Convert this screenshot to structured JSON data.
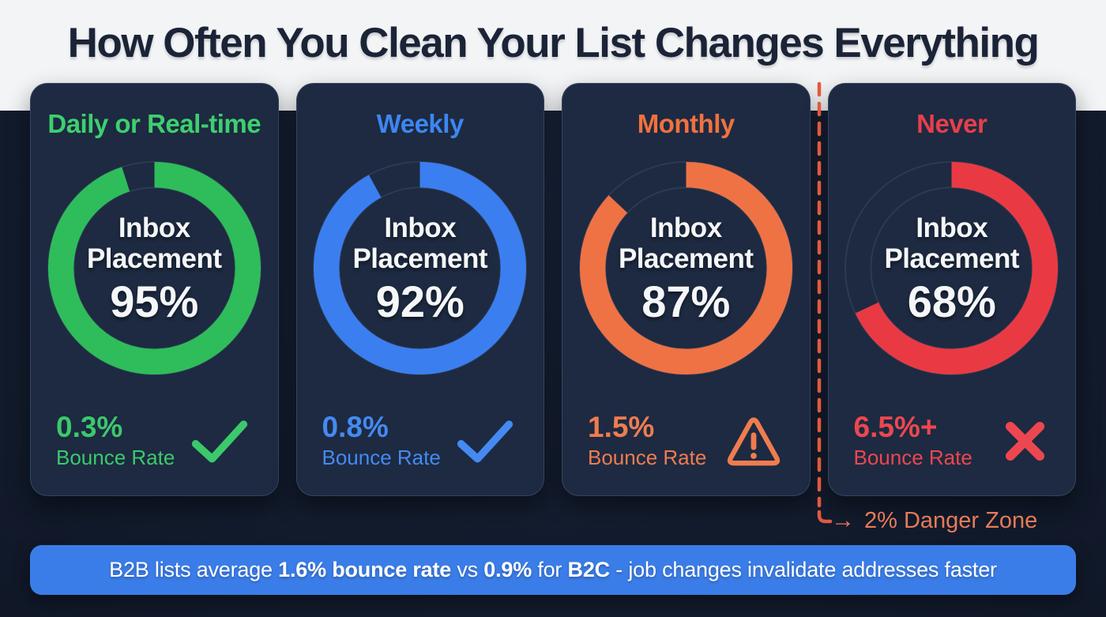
{
  "header": {
    "title": "How Often You Clean Your List Changes Everything"
  },
  "cards": [
    {
      "label": "Daily or Real-time",
      "inbox_line1": "Inbox",
      "inbox_line2": "Placement",
      "inbox_value": "95%",
      "inbox_pct": 95,
      "bounce_value": "0.3%",
      "bounce_label": "Bounce Rate",
      "status": "check",
      "label_color": "#3ecf6e",
      "ring_color": "#2ebd5a",
      "accent_color": "#3bc96c"
    },
    {
      "label": "Weekly",
      "inbox_line1": "Inbox",
      "inbox_line2": "Placement",
      "inbox_value": "92%",
      "inbox_pct": 92,
      "bounce_value": "0.8%",
      "bounce_label": "Bounce Rate",
      "status": "check",
      "label_color": "#3d86f2",
      "ring_color": "#3b7ef0",
      "accent_color": "#448af2"
    },
    {
      "label": "Monthly",
      "inbox_line1": "Inbox",
      "inbox_line2": "Placement",
      "inbox_value": "87%",
      "inbox_pct": 87,
      "bounce_value": "1.5%",
      "bounce_label": "Bounce Rate",
      "status": "warning",
      "label_color": "#f0713f",
      "ring_color": "#ef7245",
      "accent_color": "#f07c4f"
    },
    {
      "label": "Never",
      "inbox_line1": "Inbox",
      "inbox_line2": "Placement",
      "inbox_value": "68%",
      "inbox_pct": 68,
      "bounce_value": "6.5%+",
      "bounce_label": "Bounce Rate",
      "status": "cross",
      "label_color": "#e83e4b",
      "ring_color": "#e93a44",
      "accent_color": "#ec4750"
    }
  ],
  "danger_zone": {
    "arrow_icon": "→",
    "label": "2% Danger Zone",
    "line_color": "#e2593f",
    "label_color": "#e87a58"
  },
  "footer": {
    "bg_color": "#3b7de8",
    "segments": [
      {
        "text": "B2B lists average ",
        "bold": false
      },
      {
        "text": "1.6% bounce rate",
        "bold": true
      },
      {
        "text": " vs ",
        "bold": false
      },
      {
        "text": "0.9%",
        "bold": true
      },
      {
        "text": " for ",
        "bold": false
      },
      {
        "text": "B2C",
        "bold": true
      },
      {
        "text": " - job changes invalidate addresses faster",
        "bold": false
      }
    ]
  },
  "chart_data": {
    "type": "pie",
    "subtype": "donut-gauges",
    "title": "How Often You Clean Your List Changes Everything",
    "metric": "Inbox Placement",
    "categories": [
      "Daily or Real-time",
      "Weekly",
      "Monthly",
      "Never"
    ],
    "series": [
      {
        "name": "Daily or Real-time",
        "inbox_placement_pct": 95,
        "bounce_rate": "0.3%",
        "status": "good",
        "color": "#2ebd5a"
      },
      {
        "name": "Weekly",
        "inbox_placement_pct": 92,
        "bounce_rate": "0.8%",
        "status": "good",
        "color": "#3b7ef0"
      },
      {
        "name": "Monthly",
        "inbox_placement_pct": 87,
        "bounce_rate": "1.5%",
        "status": "warning",
        "color": "#ef7245"
      },
      {
        "name": "Never",
        "inbox_placement_pct": 68,
        "bounce_rate": "6.5%+",
        "status": "bad",
        "color": "#e93a44"
      }
    ],
    "annotations": [
      "2% Danger Zone",
      "B2B lists average 1.6% bounce rate vs 0.9% for B2C - job changes invalidate addresses faster"
    ],
    "legend_position": "none",
    "grid": false
  }
}
